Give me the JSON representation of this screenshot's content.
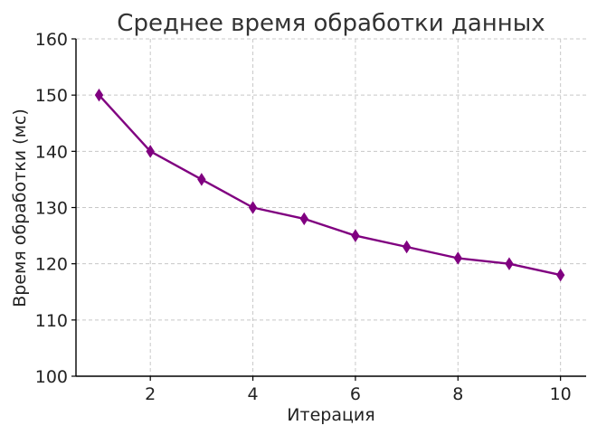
{
  "chart_data": {
    "type": "line",
    "title": "Среднее время обработки данных",
    "xlabel": "Итерация",
    "ylabel": "Время обработки (мс)",
    "x": [
      1,
      2,
      3,
      4,
      5,
      6,
      7,
      8,
      9,
      10
    ],
    "series": [
      {
        "values": [
          150,
          140,
          135,
          130,
          128,
          125,
          123,
          121,
          120,
          118
        ],
        "color": "#800080",
        "marker": "diamond"
      }
    ],
    "xlim": [
      0.55,
      10.5
    ],
    "ylim": [
      100,
      160
    ],
    "xticks": [
      2,
      4,
      6,
      8,
      10
    ],
    "yticks": [
      100,
      110,
      120,
      130,
      140,
      150,
      160
    ],
    "grid": true,
    "axes": "left-bottom"
  }
}
